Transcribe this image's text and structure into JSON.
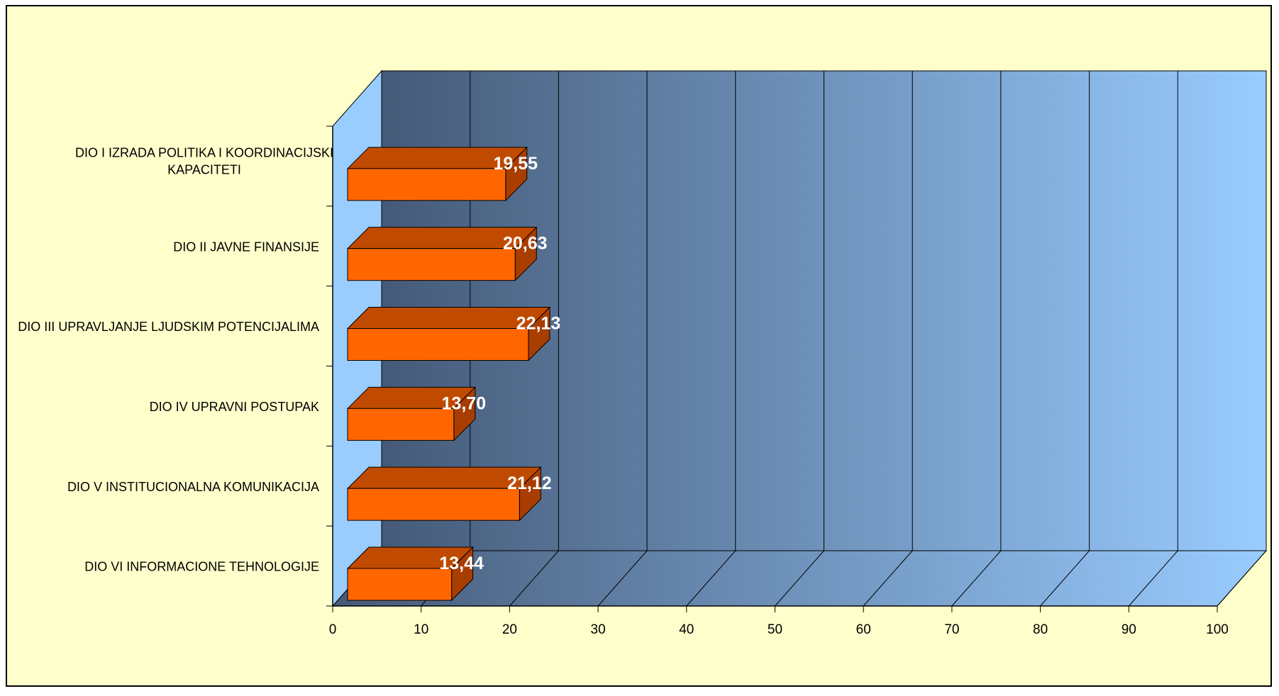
{
  "chart_data": {
    "type": "bar",
    "orientation": "horizontal",
    "three_d": true,
    "categories": [
      [
        "DIO I IZRADA POLITIKA I KOORDINACIJSKI",
        "KAPACITETI"
      ],
      [
        "DIO II JAVNE FINANSIJE"
      ],
      [
        "DIO III UPRAVLJANJE LJUDSKIM POTENCIJALIMA"
      ],
      [
        "DIO IV UPRAVNI POSTUPAK"
      ],
      [
        "DIO V INSTITUCIONALNA KOMUNIKACIJA"
      ],
      [
        "DIO VI INFORMACIONE TEHNOLOGIJE"
      ]
    ],
    "values": [
      19.55,
      20.63,
      22.13,
      13.7,
      21.12,
      13.44
    ],
    "data_labels": [
      "19,55",
      "20,63",
      "22,13",
      "13,70",
      "21,12",
      "13,44"
    ],
    "xlim": [
      0,
      100
    ],
    "x_ticks": [
      "0",
      "10",
      "20",
      "30",
      "40",
      "50",
      "60",
      "70",
      "80",
      "90",
      "100"
    ],
    "grid": true,
    "legend": "none",
    "colors": {
      "bar_front": "#ff6600",
      "bar_top": "#c04a00",
      "bar_side": "#a83d00",
      "wall_dark": "#455a78",
      "wall_light": "#99ccff",
      "side_wall": "#99ccff",
      "chart_background": "#ffffcc"
    }
  }
}
